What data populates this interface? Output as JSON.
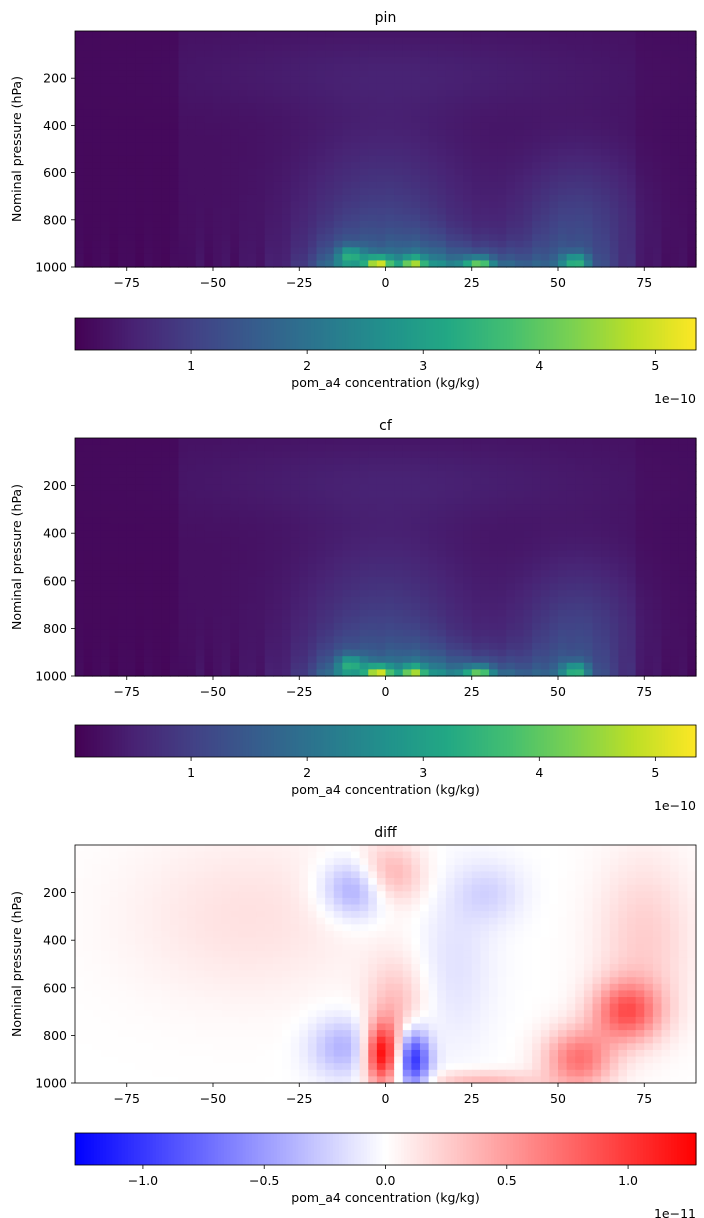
{
  "chart_data": [
    {
      "type": "heatmap",
      "title": "pin",
      "xlabel": "",
      "ylabel": "Nominal pressure (hPa)",
      "xlim": [
        -90,
        90
      ],
      "ylim": [
        1000,
        0
      ],
      "xticks": [
        "−75",
        "−50",
        "−25",
        "0",
        "25",
        "50",
        "75"
      ],
      "yticks": [
        "200",
        "400",
        "600",
        "800",
        "1000"
      ],
      "colormap": "viridis",
      "colorbar": {
        "label": "pom_a4 concentration (kg/kg)",
        "ticks": [
          "1",
          "2",
          "3",
          "4",
          "5"
        ],
        "offset": "1e−10",
        "range": [
          0,
          5.35e-10
        ]
      },
      "features": [
        {
          "lat": -2,
          "p": 990,
          "value": 5.3e-10
        },
        {
          "lat": 8,
          "p": 990,
          "value": 3.5e-10
        },
        {
          "lat": 27,
          "p": 995,
          "value": 4e-10
        },
        {
          "lat": 55,
          "p": 980,
          "value": 3.5e-10
        },
        {
          "lat": -10,
          "p": 950,
          "value": 2.8e-10
        },
        {
          "lat": 55,
          "p": 800,
          "value": 1.8e-10
        }
      ]
    },
    {
      "type": "heatmap",
      "title": "cf",
      "xlabel": "",
      "ylabel": "Nominal pressure (hPa)",
      "xlim": [
        -90,
        90
      ],
      "ylim": [
        1000,
        0
      ],
      "xticks": [
        "−75",
        "−50",
        "−25",
        "0",
        "25",
        "50",
        "75"
      ],
      "yticks": [
        "200",
        "400",
        "600",
        "800",
        "1000"
      ],
      "colormap": "viridis",
      "colorbar": {
        "label": "pom_a4 concentration (kg/kg)",
        "ticks": [
          "1",
          "2",
          "3",
          "4",
          "5"
        ],
        "offset": "1e−10",
        "range": [
          0,
          5.35e-10
        ]
      },
      "features": [
        {
          "lat": -2,
          "p": 990,
          "value": 5.3e-10
        },
        {
          "lat": 8,
          "p": 990,
          "value": 3.5e-10
        },
        {
          "lat": 27,
          "p": 995,
          "value": 4e-10
        },
        {
          "lat": 55,
          "p": 980,
          "value": 3.5e-10
        },
        {
          "lat": -10,
          "p": 950,
          "value": 2.8e-10
        },
        {
          "lat": 55,
          "p": 800,
          "value": 1.8e-10
        }
      ]
    },
    {
      "type": "heatmap",
      "title": "diff",
      "xlabel": "",
      "ylabel": "Nominal pressure (hPa)",
      "xlim": [
        -90,
        90
      ],
      "ylim": [
        1000,
        0
      ],
      "xticks": [
        "−75",
        "−50",
        "−25",
        "0",
        "25",
        "50",
        "75"
      ],
      "yticks": [
        "200",
        "400",
        "600",
        "800",
        "1000"
      ],
      "colormap": "bwr",
      "colorbar": {
        "label": "pom_a4 concentration (kg/kg)",
        "ticks": [
          "−1.0",
          "−0.5",
          "0.0",
          "0.5",
          "1.0"
        ],
        "offset": "1e−11",
        "range": [
          -1.28e-11,
          1.28e-11
        ]
      },
      "features": [
        {
          "lat": -1,
          "p": 880,
          "value": 1.2e-11
        },
        {
          "lat": 8,
          "p": 900,
          "value": -1.1e-11
        },
        {
          "lat": -12,
          "p": 850,
          "value": -4e-12
        },
        {
          "lat": -8,
          "p": 180,
          "value": -6e-12
        },
        {
          "lat": 0,
          "p": 130,
          "value": 5e-12
        },
        {
          "lat": 70,
          "p": 700,
          "value": 8e-12
        },
        {
          "lat": 56,
          "p": 900,
          "value": 7e-12
        },
        {
          "lat": 30,
          "p": 200,
          "value": -2e-12
        }
      ]
    }
  ]
}
